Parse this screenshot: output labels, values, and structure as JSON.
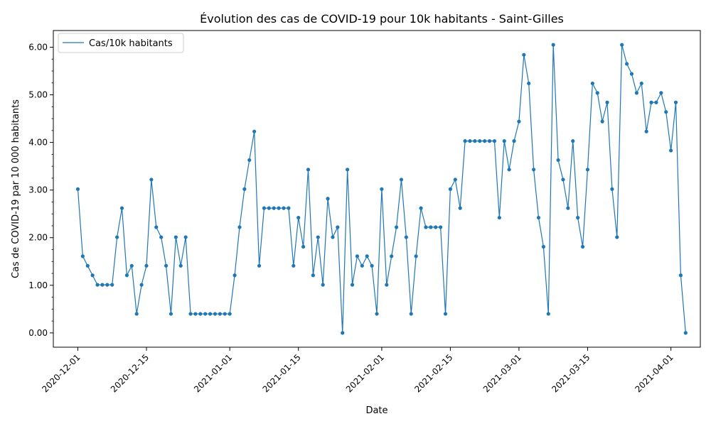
{
  "chart_data": {
    "type": "line",
    "title": "Évolution des cas de COVID-19 pour 10k habitants - Saint-Gilles",
    "xlabel": "Date",
    "ylabel": "Cas de COVID-19 par 10 000 habitants",
    "legend": {
      "placement": "top-left",
      "entries": [
        "Cas/10k habitants"
      ]
    },
    "grid": false,
    "line_color": "#1f77b4",
    "xlim": [
      "2020-11-26",
      "2021-04-07"
    ],
    "ylim": [
      -0.3,
      6.35
    ],
    "x_ticks": [
      {
        "date": "2020-12-01",
        "label": "2020-12-01"
      },
      {
        "date": "2020-12-15",
        "label": "2020-12-15"
      },
      {
        "date": "2021-01-01",
        "label": "2021-01-01"
      },
      {
        "date": "2021-01-15",
        "label": "2021-01-15"
      },
      {
        "date": "2021-02-01",
        "label": "2021-02-01"
      },
      {
        "date": "2021-02-15",
        "label": "2021-02-15"
      },
      {
        "date": "2021-03-01",
        "label": "2021-03-01"
      },
      {
        "date": "2021-03-15",
        "label": "2021-03-15"
      },
      {
        "date": "2021-04-01",
        "label": "2021-04-01"
      }
    ],
    "y_ticks": [
      {
        "value": 0,
        "label": "0.00"
      },
      {
        "value": 1,
        "label": "1.00"
      },
      {
        "value": 2,
        "label": "2.00"
      },
      {
        "value": 3,
        "label": "3.00"
      },
      {
        "value": 4,
        "label": "4.00"
      },
      {
        "value": 5,
        "label": "5.00"
      },
      {
        "value": 6,
        "label": "6.00"
      }
    ],
    "series": [
      {
        "name": "Cas/10k habitants",
        "start_date": "2020-12-01",
        "values": [
          3.02,
          1.61,
          1.41,
          1.21,
          1.01,
          1.01,
          1.01,
          1.01,
          2.01,
          2.62,
          1.21,
          1.41,
          0.4,
          1.01,
          1.41,
          3.22,
          2.22,
          2.01,
          1.41,
          0.4,
          2.01,
          1.41,
          2.01,
          0.4,
          0.4,
          0.4,
          0.4,
          0.4,
          0.4,
          0.4,
          0.4,
          0.4,
          1.21,
          2.22,
          3.02,
          3.63,
          4.23,
          1.41,
          2.62,
          2.62,
          2.62,
          2.62,
          2.62,
          2.62,
          1.41,
          2.42,
          1.81,
          3.43,
          1.21,
          2.01,
          1.01,
          2.82,
          2.01,
          2.22,
          0.0,
          3.43,
          1.01,
          1.61,
          1.41,
          1.61,
          1.41,
          0.4,
          3.02,
          1.01,
          1.61,
          2.22,
          3.22,
          2.01,
          0.4,
          1.61,
          2.62,
          2.22,
          2.22,
          2.22,
          2.22,
          0.4,
          3.02,
          3.22,
          2.62,
          4.03,
          4.03,
          4.03,
          4.03,
          4.03,
          4.03,
          4.03,
          2.42,
          4.03,
          3.43,
          4.03,
          4.44,
          5.84,
          5.24,
          3.43,
          2.42,
          1.81,
          0.4,
          6.05,
          3.63,
          3.22,
          2.62,
          4.03,
          2.42,
          1.81,
          3.43,
          5.24,
          5.04,
          4.44,
          4.84,
          3.02,
          2.01,
          6.05,
          5.65,
          5.44,
          5.04,
          5.24,
          4.23,
          4.84,
          4.84,
          5.04,
          4.64,
          3.83,
          4.84,
          1.21,
          0.0
        ]
      }
    ]
  }
}
